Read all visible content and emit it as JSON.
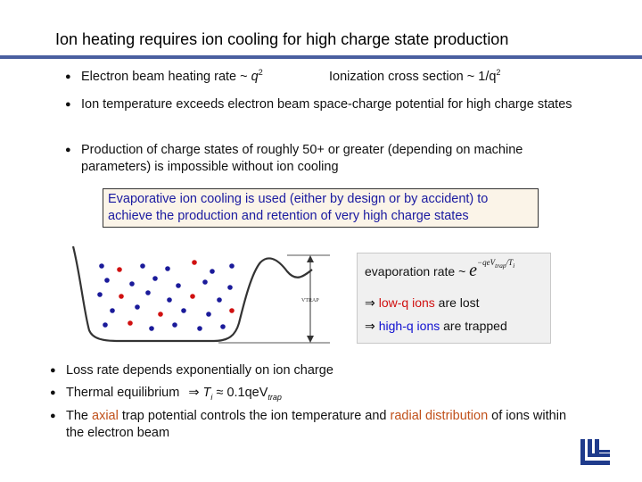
{
  "title": "Ion heating requires ion cooling for high charge state production",
  "bullets_top": [
    {
      "part1": "Electron beam heating rate",
      "tilde": "~",
      "var": "q",
      "exp": "2",
      "part2": "Ionization cross section",
      "tilde2": "~",
      "var2": "1/q",
      "exp2": "2"
    },
    {
      "text": "Ion temperature exceeds electron beam space-charge potential for high charge states"
    },
    {
      "text": "Production of charge states of roughly 50+ or greater (depending on machine parameters) is impossible without ion cooling"
    }
  ],
  "callout": "Evaporative ion cooling is used (either by design or by accident) to achieve the production and retention of very high charge states",
  "diagram": {
    "vtrap_label": "VTRAP"
  },
  "infobox": {
    "evap_label": "evaporation rate",
    "evap_sim": "~",
    "evap_base": "e",
    "evap_exponent": "−qeV",
    "evap_exp_sub": "trap",
    "evap_exp_tail": "/T",
    "evap_exp_sub2": "i",
    "low_q": "low-q ions",
    "low_q_tail": " are lost",
    "high_q": "high-q ions",
    "high_q_tail": " are trapped"
  },
  "bullets_bottom": [
    {
      "text": "Loss rate depends exponentially on ion charge"
    },
    {
      "label": "Thermal equilibrium",
      "implies": "⇒",
      "var": "T",
      "sub": "i",
      "approx": "≈",
      "rhs": "0.1qeV",
      "rhs_sub": "trap"
    },
    {
      "p1": "The ",
      "axial": "axial",
      "p2": " trap potential controls the ion temperature and ",
      "radial": "radial distribution",
      "p3": " of ions within the electron beam"
    }
  ],
  "colors": {
    "rule": "#4a5fa0",
    "red_ion": "#d01010",
    "blue_ion": "#1a1a9a",
    "callout_text": "#1a1aa0",
    "orange_text": "#c0501a"
  }
}
